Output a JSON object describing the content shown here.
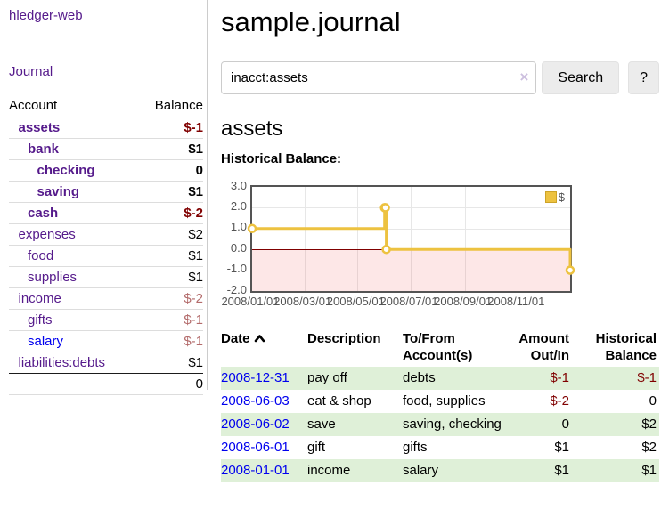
{
  "colors": {
    "link_visited": "#551a8b",
    "link_unvisited": "#0000ee",
    "negative": "#800000",
    "negative_soft": "#b36b6b",
    "row_stripe_green": "#dff0d8",
    "series_gold": "#edc240",
    "chart_axis_gray": "#545454"
  },
  "sidebar": {
    "brand": "hledger-web",
    "nav": {
      "journal": "Journal"
    },
    "accounts_table": {
      "headers": {
        "account": "Account",
        "balance": "Balance"
      },
      "rows": [
        {
          "name": "assets",
          "level": 1,
          "bold": true,
          "balance": "$-1",
          "tone": "negative",
          "link": "visited"
        },
        {
          "name": "bank",
          "level": 2,
          "bold": true,
          "balance": "$1",
          "tone": "normal",
          "link": "visited"
        },
        {
          "name": "checking",
          "level": 3,
          "bold": true,
          "balance": "0",
          "tone": "normal",
          "link": "visited"
        },
        {
          "name": "saving",
          "level": 3,
          "bold": true,
          "balance": "$1",
          "tone": "normal",
          "link": "visited"
        },
        {
          "name": "cash",
          "level": 2,
          "bold": true,
          "balance": "$-2",
          "tone": "negative",
          "link": "visited"
        },
        {
          "name": "expenses",
          "level": 1,
          "bold": false,
          "balance": "$2",
          "tone": "normal",
          "link": "visited"
        },
        {
          "name": "food",
          "level": 2,
          "bold": false,
          "balance": "$1",
          "tone": "normal",
          "link": "visited"
        },
        {
          "name": "supplies",
          "level": 2,
          "bold": false,
          "balance": "$1",
          "tone": "normal",
          "link": "visited"
        },
        {
          "name": "income",
          "level": 1,
          "bold": false,
          "balance": "$-2",
          "tone": "negative_soft",
          "link": "visited"
        },
        {
          "name": "gifts",
          "level": 2,
          "bold": false,
          "balance": "$-1",
          "tone": "negative_soft",
          "link": "visited"
        },
        {
          "name": "salary",
          "level": 2,
          "bold": false,
          "balance": "$-1",
          "tone": "negative_soft",
          "link": "unvisited"
        },
        {
          "name": "liabilities:debts",
          "level": 1,
          "bold": false,
          "balance": "$1",
          "tone": "normal",
          "link": "visited"
        }
      ],
      "total": "0"
    }
  },
  "header": {
    "title": "sample.journal"
  },
  "search": {
    "query": "inacct:assets",
    "clear_icon": "×",
    "search_button": "Search",
    "help_button": "?"
  },
  "account_page": {
    "heading": "assets",
    "chart_label": "Historical Balance:"
  },
  "chart_data": {
    "type": "line",
    "title": "Historical Balance:",
    "steps": true,
    "x_ticks": [
      "2008/01/01",
      "2008/03/01",
      "2008/05/01",
      "2008/07/01",
      "2008/09/01",
      "2008/11/01"
    ],
    "y_ticks": [
      "3.0",
      "2.0",
      "1.0",
      "0.0",
      "-1.0",
      "-2.0"
    ],
    "xlim": [
      "2008-01-01",
      "2008-12-31"
    ],
    "ylim": [
      -2,
      3
    ],
    "grid": true,
    "legend_position": "top-right",
    "negative_region": true,
    "zero_line_color": "#800000",
    "series": [
      {
        "name": "$",
        "color": "#edc240",
        "points": [
          [
            "2008-01-01",
            1
          ],
          [
            "2008-06-01",
            2
          ],
          [
            "2008-06-02",
            2
          ],
          [
            "2008-06-03",
            0
          ],
          [
            "2008-12-31",
            -1
          ]
        ]
      }
    ]
  },
  "register": {
    "columns": [
      "Date",
      "Description",
      "To/From Account(s)",
      "Amount Out/In",
      "Historical Balance"
    ],
    "sort": {
      "column": "Date",
      "direction": "ascending"
    },
    "rows": [
      {
        "date": "2008-12-31",
        "description": "pay off",
        "accounts": "debts",
        "amount": "$-1",
        "amount_tone": "negative",
        "balance": "$-1",
        "balance_tone": "negative",
        "stripe": true
      },
      {
        "date": "2008-06-03",
        "description": "eat & shop",
        "accounts": "food, supplies",
        "amount": "$-2",
        "amount_tone": "negative",
        "balance": "0",
        "balance_tone": "normal",
        "stripe": false
      },
      {
        "date": "2008-06-02",
        "description": "save",
        "accounts": "saving, checking",
        "amount": "0",
        "amount_tone": "normal",
        "balance": "$2",
        "balance_tone": "normal",
        "stripe": true
      },
      {
        "date": "2008-06-01",
        "description": "gift",
        "accounts": "gifts",
        "amount": "$1",
        "amount_tone": "normal",
        "balance": "$2",
        "balance_tone": "normal",
        "stripe": false
      },
      {
        "date": "2008-01-01",
        "description": "income",
        "accounts": "salary",
        "amount": "$1",
        "amount_tone": "normal",
        "balance": "$1",
        "balance_tone": "normal",
        "stripe": true
      }
    ]
  }
}
